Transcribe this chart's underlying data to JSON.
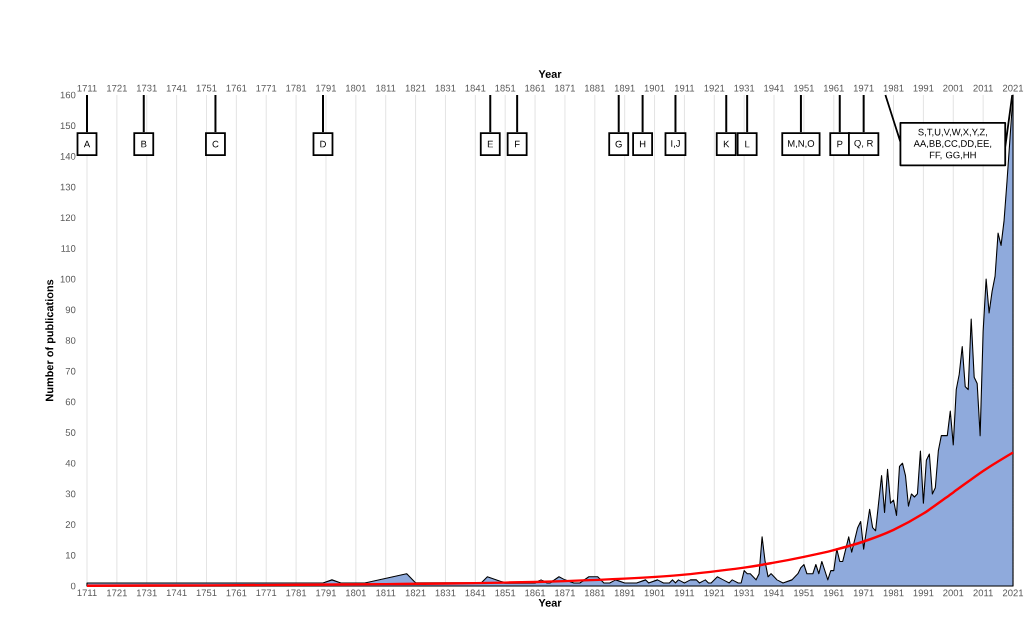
{
  "chart_data": {
    "type": "area",
    "xlabel": "Year",
    "x2label": "Year",
    "ylabel": "Number of publications",
    "xlim": [
      1711,
      2021
    ],
    "xticks": [
      1711,
      1721,
      1731,
      1741,
      1751,
      1761,
      1771,
      1781,
      1791,
      1801,
      1811,
      1821,
      1831,
      1841,
      1851,
      1861,
      1871,
      1881,
      1891,
      1901,
      1911,
      1921,
      1931,
      1941,
      1951,
      1961,
      1971,
      1981,
      1991,
      2001,
      2011,
      2021
    ],
    "x2lim": [
      1711,
      2021
    ],
    "x2ticks": [
      1711,
      1721,
      1731,
      1741,
      1751,
      1761,
      1771,
      1781,
      1791,
      1801,
      1811,
      1821,
      1831,
      1841,
      1851,
      1861,
      1871,
      1881,
      1891,
      1901,
      1911,
      1921,
      1931,
      1941,
      1951,
      1961,
      1971,
      1981,
      1991,
      2001,
      2011,
      2021
    ],
    "ylim": [
      0,
      160
    ],
    "yticks": [
      0,
      10,
      20,
      30,
      40,
      50,
      60,
      70,
      80,
      90,
      100,
      110,
      120,
      130,
      140,
      150,
      160
    ],
    "grid": "x",
    "series": [
      {
        "color": "#8faadc",
        "x": [
          1711,
          1790,
          1793,
          1796,
          1804,
          1818,
          1821,
          1843,
          1845,
          1851,
          1861,
          1863,
          1865,
          1866,
          1869,
          1871,
          1874,
          1876,
          1879,
          1882,
          1884,
          1886,
          1888,
          1891,
          1895,
          1898,
          1899,
          1902,
          1904,
          1906,
          1907,
          1908,
          1909,
          1911,
          1913,
          1915,
          1916,
          1918,
          1919,
          1920,
          1922,
          1924,
          1926,
          1927,
          1929,
          1930,
          1931,
          1932,
          1933,
          1935,
          1936,
          1937,
          1938,
          1939,
          1940,
          1942,
          1944,
          1947,
          1949,
          1950,
          1951,
          1952,
          1954,
          1955,
          1956,
          1957,
          1959,
          1960,
          1961,
          1962,
          1963,
          1964,
          1966,
          1967,
          1969,
          1970,
          1971,
          1973,
          1974,
          1975,
          1977,
          1978,
          1979,
          1980,
          1981,
          1982,
          1983,
          1984,
          1985,
          1986,
          1987,
          1988,
          1989,
          1990,
          1991,
          1992,
          1993,
          1994,
          1995,
          1996,
          1997,
          1999,
          2000,
          2001,
          2002,
          2003,
          2004,
          2005,
          2006,
          2007,
          2008,
          2009,
          2010,
          2011,
          2012,
          2013,
          2014,
          2015,
          2016,
          2017,
          2018,
          2019,
          2020,
          2021
        ],
        "values": [
          1,
          1,
          2,
          1,
          1,
          4,
          1,
          1,
          3,
          1,
          1,
          2,
          1,
          1,
          3,
          2,
          1,
          1,
          3,
          3,
          1,
          1,
          2,
          1,
          1,
          2,
          1,
          2,
          1,
          1,
          2,
          1,
          2,
          1,
          2,
          2,
          1,
          2,
          1,
          1,
          3,
          2,
          1,
          2,
          1,
          1,
          5,
          4,
          4,
          2,
          4,
          16,
          8,
          3,
          4,
          2,
          1,
          2,
          4,
          6,
          7,
          4,
          4,
          7,
          4,
          8,
          2,
          5,
          5,
          12,
          8,
          8,
          16,
          11,
          19,
          21,
          12,
          25,
          19,
          18,
          36,
          24,
          38,
          27,
          28,
          23,
          39,
          40,
          36,
          26,
          30,
          29,
          30,
          44,
          27,
          41,
          43,
          30,
          32,
          44,
          49,
          49,
          57,
          46,
          64,
          69,
          78,
          65,
          64,
          87,
          68,
          66,
          49,
          83,
          100,
          89,
          96,
          101,
          115,
          111,
          119,
          132,
          146,
          160
        ]
      },
      {
        "type": "line",
        "color": "#ff0000",
        "x": [
          1711,
          1751,
          1781,
          1811,
          1831,
          1851,
          1871,
          1891,
          1911,
          1931,
          1941,
          1951,
          1961,
          1971,
          1981,
          1991,
          2001,
          2011,
          2021
        ],
        "values": [
          0.1,
          0.2,
          0.4,
          0.6,
          0.8,
          1.1,
          1.6,
          2.4,
          3.7,
          6,
          7.6,
          9.5,
          11.7,
          14.5,
          18.3,
          23.6,
          30.5,
          37.5,
          43.5
        ]
      }
    ],
    "annotations": [
      {
        "text": "A",
        "x": 1711,
        "y": 144
      },
      {
        "text": "B",
        "x": 1730,
        "y": 144
      },
      {
        "text": "C",
        "x": 1754,
        "y": 144
      },
      {
        "text": "D",
        "x": 1790,
        "y": 144
      },
      {
        "text": "E",
        "x": 1846,
        "y": 144
      },
      {
        "text": "F",
        "x": 1855,
        "y": 144
      },
      {
        "text": "G",
        "x": 1889,
        "y": 144
      },
      {
        "text": "H",
        "x": 1897,
        "y": 144
      },
      {
        "text": "I,J",
        "x": 1908,
        "y": 144
      },
      {
        "text": "K",
        "x": 1925,
        "y": 144
      },
      {
        "text": "L",
        "x": 1932,
        "y": 144
      },
      {
        "text": "M,N,O",
        "x": 1950,
        "y": 144
      },
      {
        "text": "P",
        "x": 1963,
        "y": 144
      },
      {
        "text": "Q, R",
        "x": 1971,
        "y": 144
      },
      "S,T,U,V,W,X,Y,Z, AA,BB,CC,DD,EE, FF, GG,HH"
    ]
  }
}
